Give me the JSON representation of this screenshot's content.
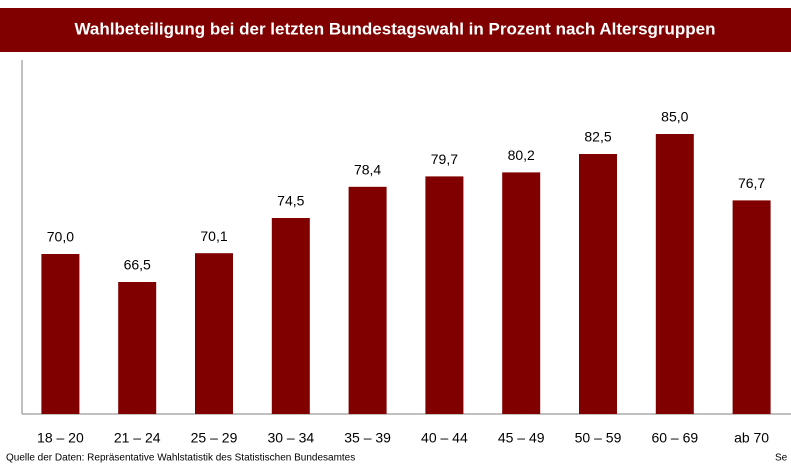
{
  "chart_data": {
    "type": "bar",
    "title": "Wahlbeteiligung bei der letzten Bundestagswahl in Prozent nach Altersgruppen",
    "categories": [
      "18 – 20",
      "21 – 24",
      "25 – 29",
      "30 – 34",
      "35 – 39",
      "40 – 44",
      "45 – 49",
      "50 – 59",
      "60 – 69",
      "ab 70"
    ],
    "values": [
      70.0,
      66.5,
      70.1,
      74.5,
      78.4,
      79.7,
      80.2,
      82.5,
      85.0,
      76.7
    ],
    "value_labels": [
      "70,0",
      "66,5",
      "70,1",
      "74,5",
      "78,4",
      "79,7",
      "80,2",
      "82,5",
      "85,0",
      "76,7"
    ],
    "color": "#800000",
    "ylim": [
      50,
      95
    ],
    "source": "Quelle der Daten: Repräsentative Wahlstatistik des Statistischen Bundesamtes",
    "corner_note": "Se"
  }
}
